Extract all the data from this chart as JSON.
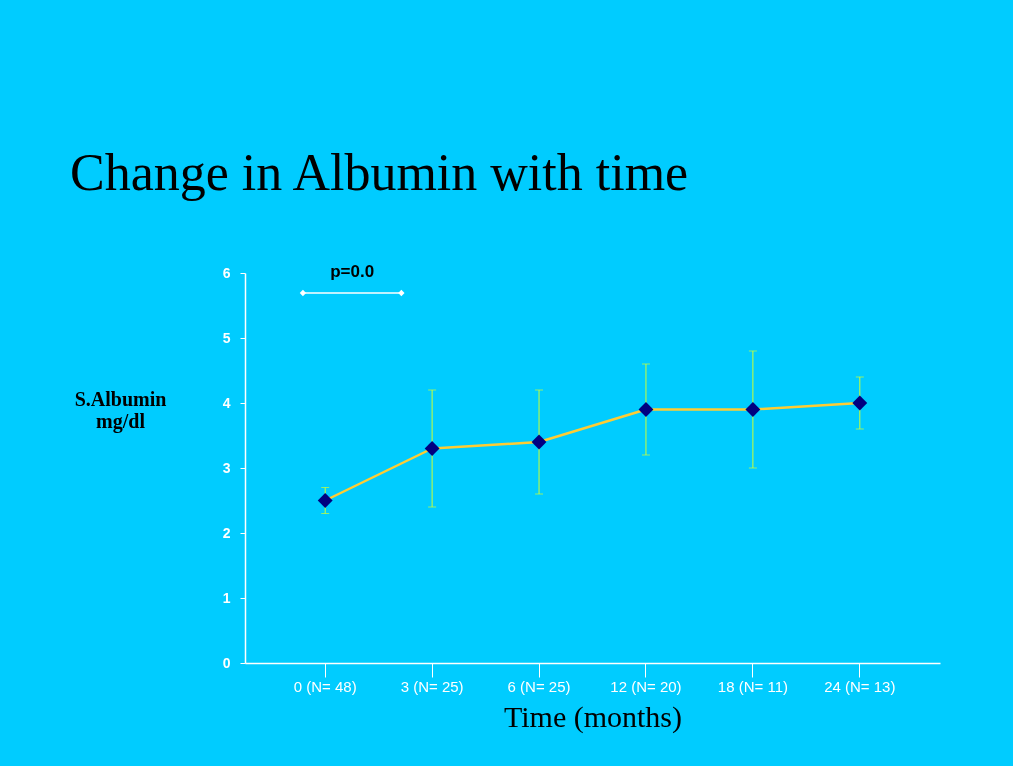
{
  "chart_data": {
    "type": "line",
    "title": "Change in Albumin with time",
    "xlabel": "Time (months)",
    "ylabel": "S.Albumin mg/dl",
    "categories": [
      "0 (N= 48)",
      "3 (N= 25)",
      "6 (N= 25)",
      "12 (N= 20)",
      "18 (N= 11)",
      "24 (N= 13)"
    ],
    "series": [
      {
        "color": "#ffcc33",
        "values": [
          2.5,
          3.3,
          3.4,
          3.9,
          3.9,
          4.0
        ],
        "errors": [
          [
            2.3,
            2.7
          ],
          [
            2.4,
            4.2
          ],
          [
            2.6,
            4.2
          ],
          [
            3.2,
            4.6
          ],
          [
            3.0,
            4.8
          ],
          [
            3.6,
            4.4
          ]
        ]
      }
    ],
    "ylim": [
      0,
      6
    ],
    "yticks": [
      0,
      1,
      2,
      3,
      4,
      5,
      6
    ],
    "annotations": [
      "p=0.0"
    ],
    "marker": "diamond",
    "line_style": "solid",
    "grid": false
  }
}
